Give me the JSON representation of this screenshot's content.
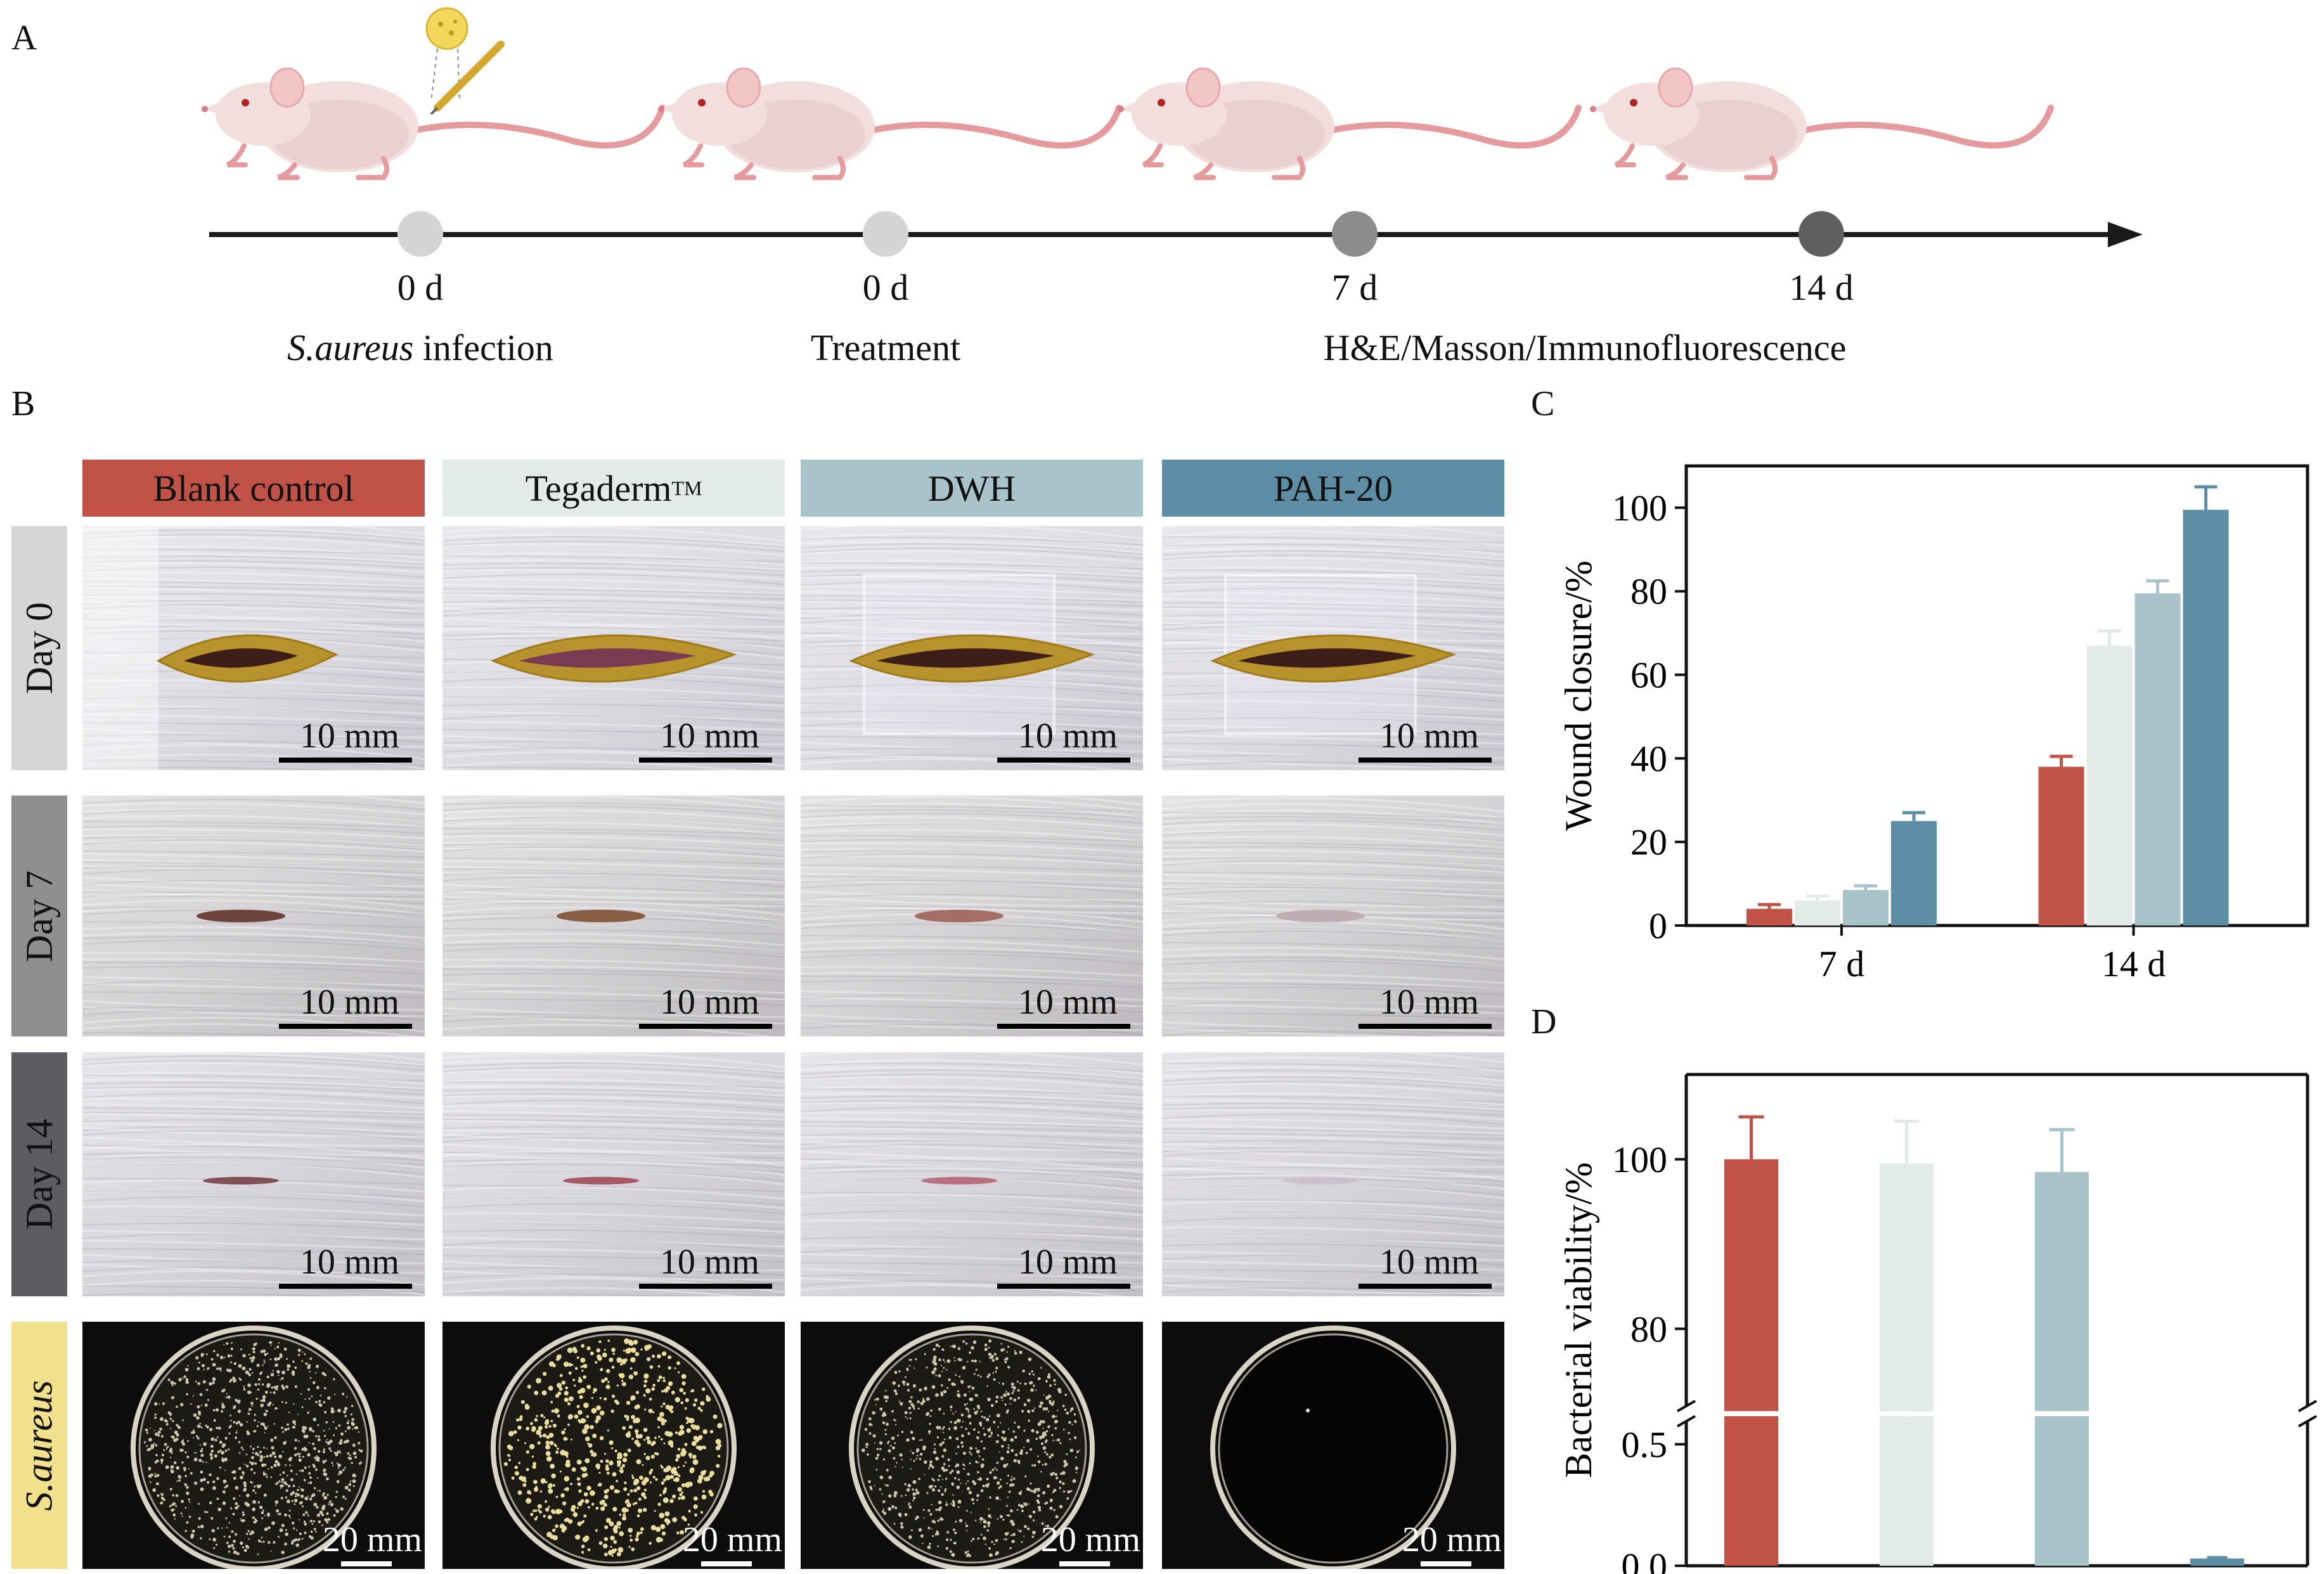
{
  "panel_labels": {
    "a": "A",
    "b": "B",
    "c": "C",
    "d": "D"
  },
  "timeline": {
    "points": [
      {
        "day": "0 d",
        "event": "infection",
        "organism": "S.aureus",
        "color": "#d4d4d4"
      },
      {
        "day": "0 d",
        "event": "Treatment",
        "color": "#d4d4d4"
      },
      {
        "day": "7 d",
        "event": "",
        "color": "#8c8c8c"
      },
      {
        "day": "14 d",
        "event": "",
        "color": "#5f5f5f"
      }
    ],
    "analysis_label": "H&E/Masson/Immunofluorescence"
  },
  "groups": [
    {
      "name": "Blank control",
      "sup": "",
      "bg": "#c15247",
      "fg": "#111111"
    },
    {
      "name": "Tegaderm",
      "sup": "TM",
      "bg": "#e3ebe8",
      "fg": "#111111"
    },
    {
      "name": "DWH",
      "sup": "",
      "bg": "#a9c3ca",
      "fg": "#111111"
    },
    {
      "name": "PAH-20",
      "sup": "",
      "bg": "#5e8ea6",
      "fg": "#111111"
    }
  ],
  "rows": [
    {
      "label": "Day 0",
      "bg": "#d6d6d6",
      "scale": "10 mm",
      "italic": false
    },
    {
      "label": "Day 7",
      "bg": "#8f8f8f",
      "scale": "10 mm",
      "italic": false
    },
    {
      "label": "Day 14",
      "bg": "#5c5c62",
      "scale": "10 mm",
      "italic": false
    },
    {
      "label": "S.aureus",
      "bg": "#f1e18c",
      "scale": "20 mm",
      "italic": true
    }
  ],
  "colors": {
    "blank": "#c15247",
    "tegaderm": "#e3ebe8",
    "dwh": "#a9c3ca",
    "pah": "#5e8ea6"
  },
  "chart_data": [
    {
      "type": "bar",
      "panel": "C",
      "categories": [
        "7 d",
        "14 d"
      ],
      "series": [
        {
          "values": [
            4,
            38
          ],
          "errors": [
            1,
            2.5
          ],
          "color": "#c15247"
        },
        {
          "values": [
            6,
            67
          ],
          "errors": [
            1,
            3.5
          ],
          "color": "#e3ebe8"
        },
        {
          "values": [
            8.5,
            79.5
          ],
          "errors": [
            1,
            3
          ],
          "color": "#a9c3ca"
        },
        {
          "values": [
            25,
            99.5
          ],
          "errors": [
            2,
            5.5
          ],
          "color": "#5e8ea6"
        }
      ],
      "ylabel": "Wound closure/%",
      "ylim": [
        0,
        110
      ],
      "yticks": [
        0,
        20,
        40,
        60,
        80,
        100
      ]
    },
    {
      "type": "bar",
      "panel": "D",
      "categories": [
        "Blank control",
        "Tegaderm",
        "DWH",
        "PAH-20"
      ],
      "values": [
        100,
        99.5,
        98.5,
        0.03
      ],
      "errors": [
        5,
        5,
        5,
        0.005
      ],
      "colors": [
        "#c15247",
        "#e3ebe8",
        "#a9c3ca",
        "#5e8ea6"
      ],
      "ylabel": "Bacterial viability/%",
      "axis_break": true,
      "lower_range": [
        0,
        0.6
      ],
      "upper_range": [
        70,
        110
      ],
      "yticks_lower": [
        "0.0",
        "0.5"
      ],
      "yticks_upper": [
        "80",
        "100"
      ]
    }
  ]
}
